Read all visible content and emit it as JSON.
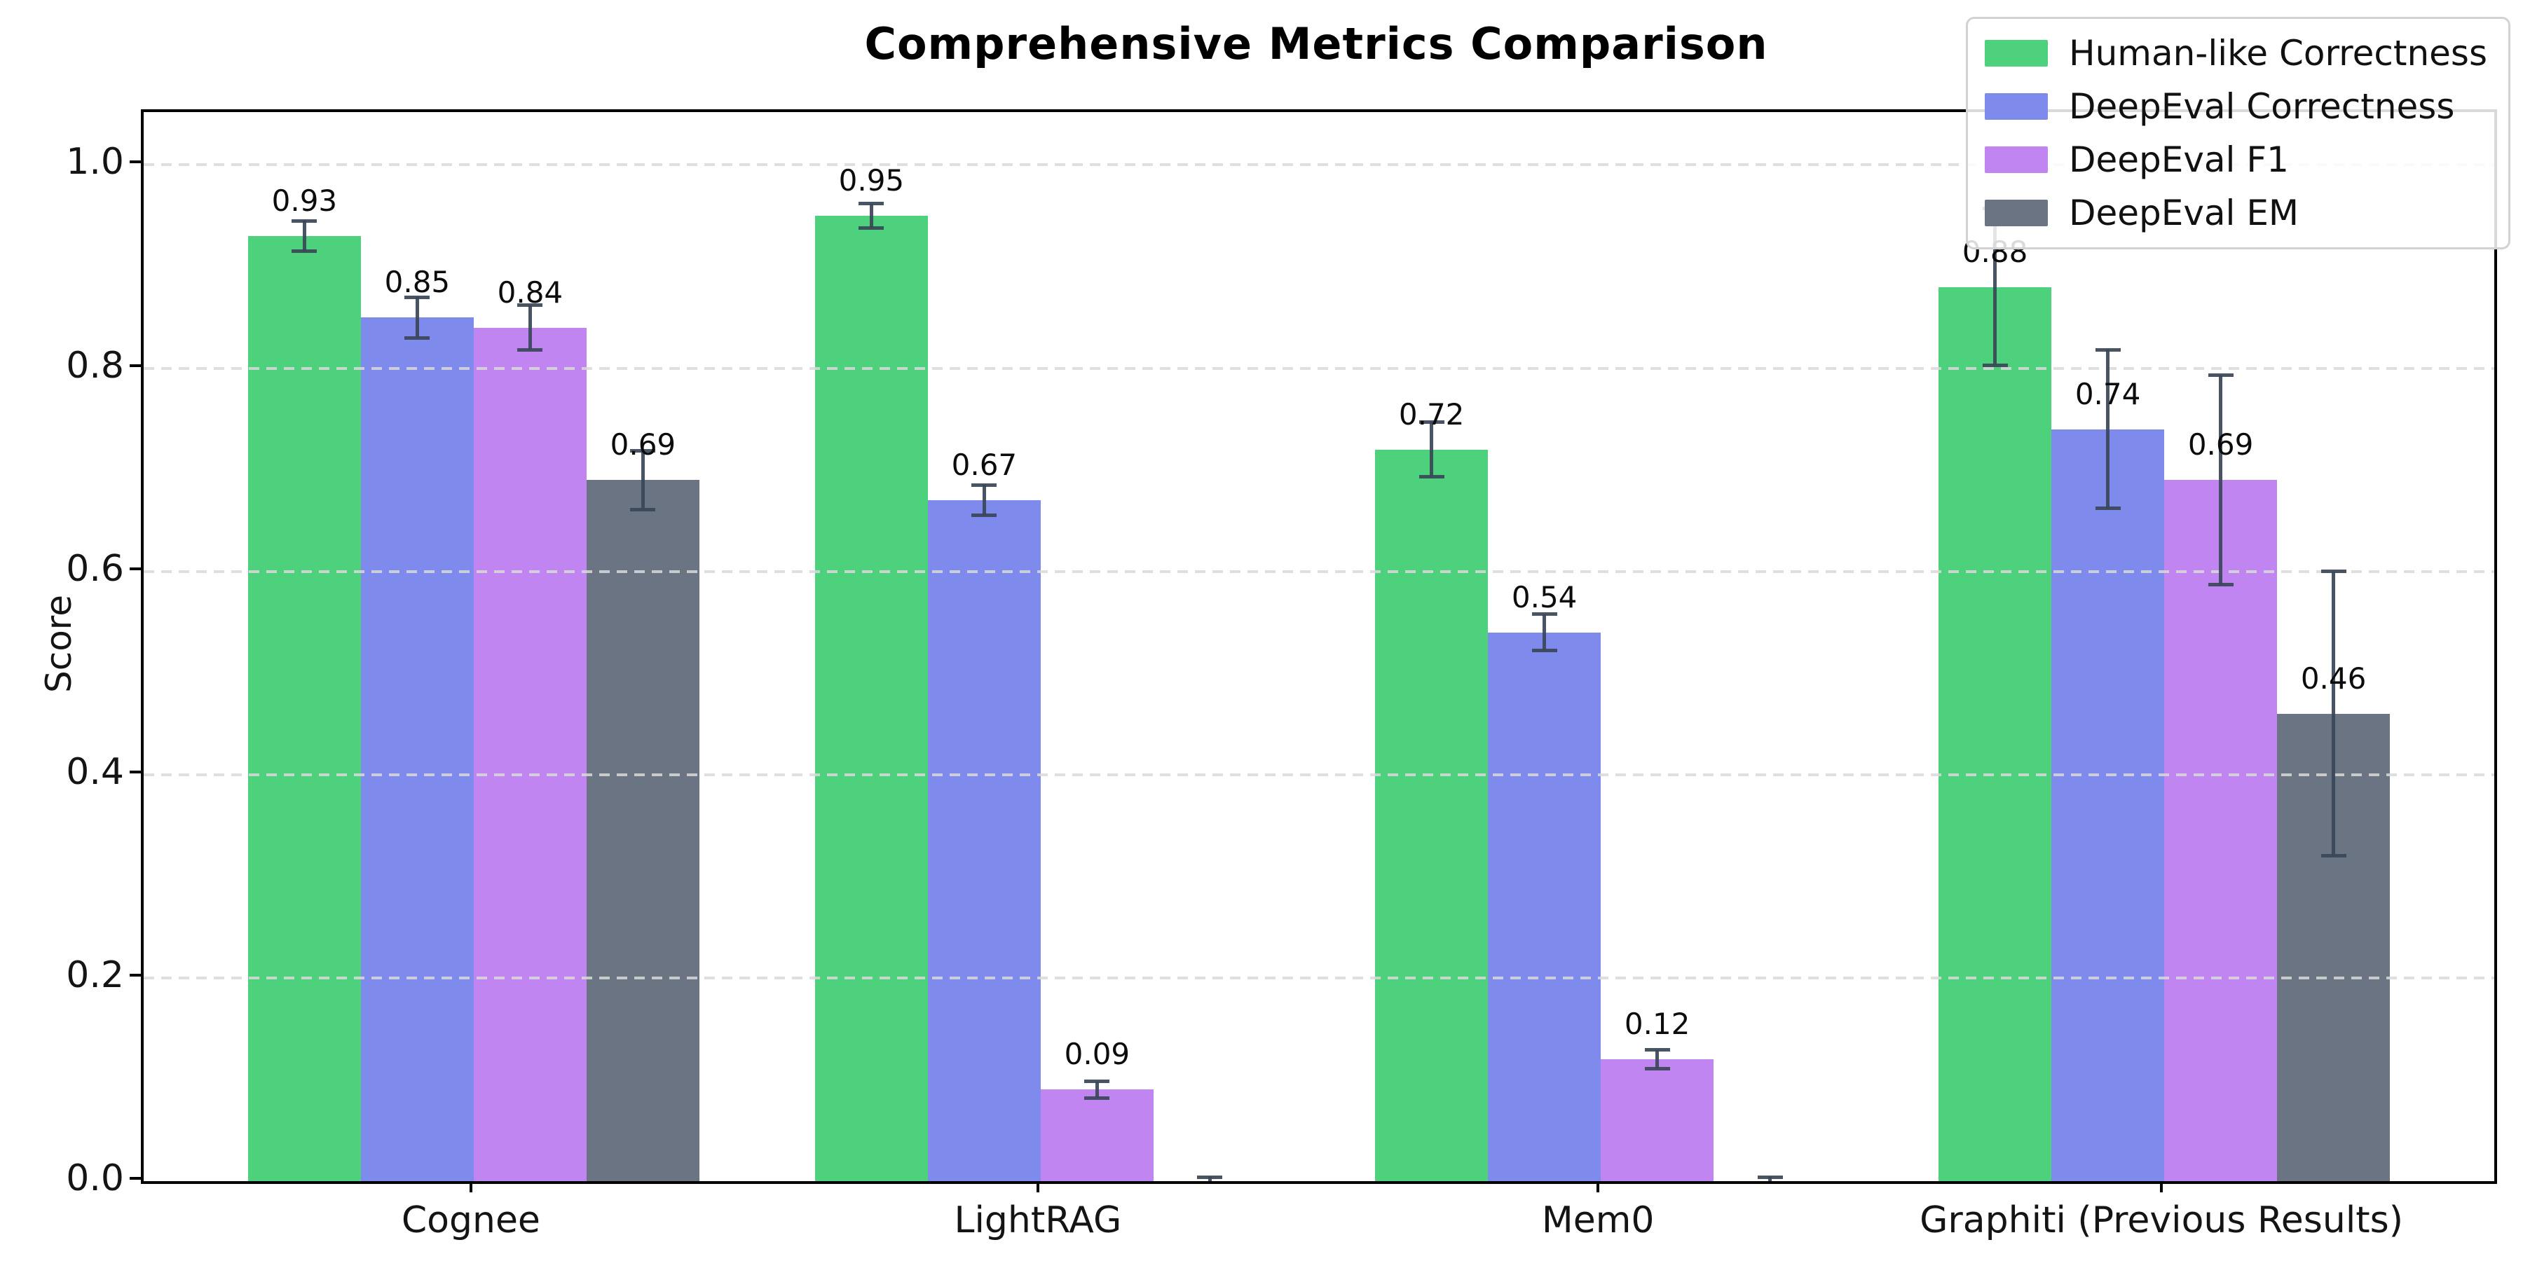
{
  "figure": {
    "title": "Comprehensive Metrics Comparison",
    "ylabel": "Score"
  },
  "chart_data": {
    "type": "bar",
    "title": "Comprehensive Metrics Comparison",
    "xlabel": "",
    "ylabel": "Score",
    "ylim": [
      0,
      1.05
    ],
    "ytick_labels": [
      "0.0",
      "0.2",
      "0.4",
      "0.6",
      "0.8",
      "1.0"
    ],
    "ytick_values": [
      0.0,
      0.2,
      0.4,
      0.6,
      0.8,
      1.0
    ],
    "grid": "horizontal-dashed",
    "grid_color": "#d9d9d9",
    "legend_position": "upper right",
    "errorbar_color": "#3a4658",
    "categories": [
      "Cognee",
      "LightRAG",
      "Mem0",
      "Graphiti (Previous Results)"
    ],
    "series": [
      {
        "name": "Human-like Correctness",
        "color": "#4dd17d",
        "values": [
          0.93,
          0.95,
          0.72,
          0.88
        ],
        "errors": [
          0.015,
          0.012,
          0.027,
          0.077
        ],
        "value_labels": [
          "0.93",
          "0.95",
          "0.72",
          "0.88"
        ]
      },
      {
        "name": "DeepEval Correctness",
        "color": "#7e8bec",
        "values": [
          0.85,
          0.67,
          0.54,
          0.74
        ],
        "errors": [
          0.02,
          0.015,
          0.018,
          0.078
        ],
        "value_labels": [
          "0.85",
          "0.67",
          "0.54",
          "0.74"
        ]
      },
      {
        "name": "DeepEval F1",
        "color": "#c185f2",
        "values": [
          0.84,
          0.09,
          0.12,
          0.69
        ],
        "errors": [
          0.022,
          0.008,
          0.009,
          0.103
        ],
        "value_labels": [
          "0.84",
          "0.09",
          "0.12",
          "0.69"
        ]
      },
      {
        "name": "DeepEval EM",
        "color": "#6b7482",
        "values": [
          0.69,
          0.0,
          0.0,
          0.46
        ],
        "errors": [
          0.029,
          0.004,
          0.004,
          0.14
        ],
        "value_labels": [
          "0.69",
          "",
          "",
          "0.46"
        ]
      }
    ]
  }
}
